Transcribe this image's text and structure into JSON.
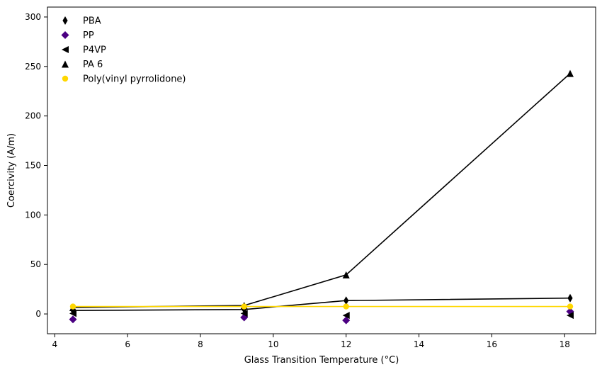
{
  "chart_data": {
    "type": "scatter",
    "title": "",
    "xlabel": "Glass Transition Temperature (°C)",
    "ylabel": "Coercivity (A/m)",
    "xlim": [
      3.8,
      18.85
    ],
    "ylim": [
      -20,
      310
    ],
    "x_ticks": [
      4,
      6,
      8,
      10,
      12,
      14,
      16,
      18
    ],
    "y_ticks": [
      0,
      50,
      100,
      150,
      200,
      250,
      300
    ],
    "legend_position": "top-left",
    "grid": false,
    "series": [
      {
        "name": "PBA",
        "marker": "thin-diamond",
        "color": "#000000",
        "line": true,
        "line_color": "#000000",
        "points": [
          [
            4.5,
            3.5
          ],
          [
            9.2,
            4.5
          ],
          [
            12.0,
            13.5
          ],
          [
            18.15,
            16.0
          ]
        ]
      },
      {
        "name": "PP",
        "marker": "diamond",
        "color": "#4b0082",
        "line": false,
        "points": [
          [
            4.5,
            -5.5
          ],
          [
            9.2,
            -3.5
          ],
          [
            12.0,
            -6.5
          ],
          [
            18.15,
            2.5
          ]
        ]
      },
      {
        "name": "P4VP",
        "marker": "triangle-left",
        "color": "#000000",
        "line": false,
        "points": [
          [
            4.5,
            0.5
          ],
          [
            9.2,
            0.5
          ],
          [
            12.0,
            -1.5
          ],
          [
            18.15,
            -1.5
          ]
        ]
      },
      {
        "name": "PA 6",
        "marker": "triangle-up",
        "color": "#000000",
        "line": true,
        "line_color": "#000000",
        "points": [
          [
            4.5,
            6.5
          ],
          [
            9.2,
            8.5
          ],
          [
            12.0,
            39.5
          ],
          [
            18.15,
            243.0
          ]
        ]
      },
      {
        "name": "Poly(vinyl pyrrolidone)",
        "marker": "circle",
        "color": "#ffd700",
        "line": true,
        "line_color": "#ffd700",
        "points": [
          [
            4.5,
            7.5
          ],
          [
            9.2,
            7.5
          ],
          [
            12.0,
            7.5
          ],
          [
            18.15,
            7.5
          ]
        ]
      }
    ]
  }
}
